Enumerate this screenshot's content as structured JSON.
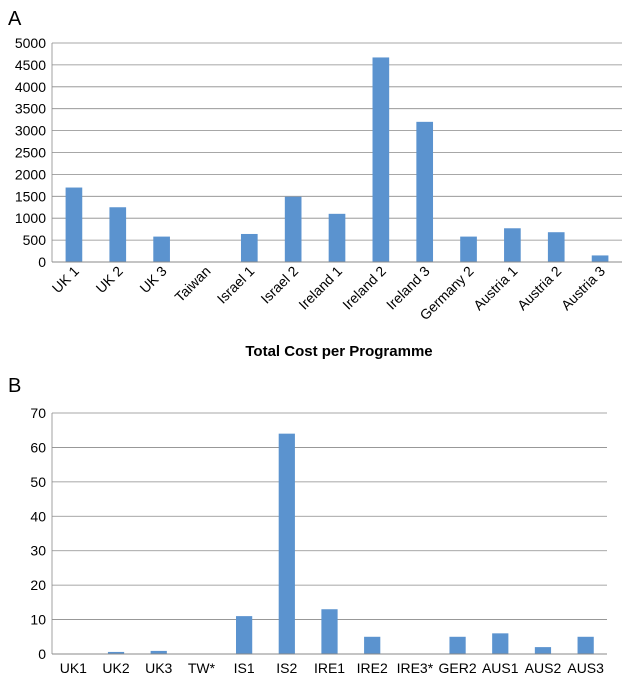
{
  "panels": {
    "a_label": "A",
    "b_label": "B"
  },
  "colors": {
    "bar": "#5b93cf",
    "grid": "#8a8a8a",
    "axis": "#8a8a8a",
    "text": "#000000"
  },
  "chart_data": [
    {
      "panel": "A",
      "type": "bar",
      "title": "",
      "xlabel": "Total Cost per Programme",
      "ylabel": "",
      "ylim": [
        0,
        5000
      ],
      "yticks": [
        0,
        500,
        1000,
        1500,
        2000,
        2500,
        3000,
        3500,
        4000,
        4500,
        5000
      ],
      "grid": true,
      "legend": "none",
      "categories": [
        "UK 1",
        "UK 2",
        "UK 3",
        "Taiwan",
        "Israel 1",
        "Israel 2",
        "Ireland 1",
        "Ireland 2",
        "Ireland 3",
        "Germany 2",
        "Austria 1",
        "Austria 2",
        "Austria 3"
      ],
      "values": [
        1700,
        1250,
        580,
        10,
        640,
        1490,
        1100,
        4670,
        3200,
        580,
        770,
        680,
        150
      ]
    },
    {
      "panel": "B",
      "type": "bar",
      "title": "",
      "xlabel": "",
      "ylabel": "",
      "ylim": [
        0,
        70
      ],
      "yticks": [
        0,
        10,
        20,
        30,
        40,
        50,
        60,
        70
      ],
      "grid": true,
      "legend": "none",
      "categories": [
        "UK1",
        "UK2",
        "UK3",
        "TW*",
        "IS1",
        "IS2",
        "IRE1",
        "IRE2",
        "IRE3*",
        "GER2",
        "AUS1",
        "AUS2",
        "AUS3"
      ],
      "values": [
        0,
        0.6,
        0.9,
        0,
        11,
        64,
        13,
        5,
        0,
        5,
        6,
        2,
        5
      ]
    }
  ]
}
